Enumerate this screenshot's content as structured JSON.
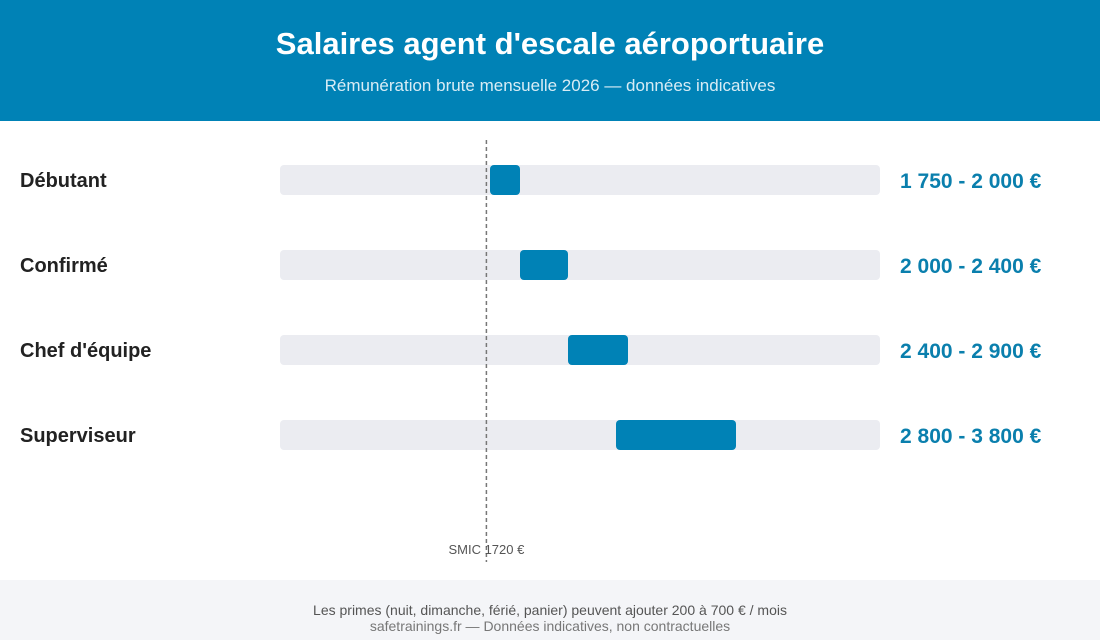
{
  "header": {
    "title": "Salaires agent d'escale aéroportuaire",
    "subtitle": "Rémunération brute mensuelle 2026 — données indicatives"
  },
  "chart_data": {
    "type": "bar",
    "orientation": "horizontal-range",
    "categories": [
      "Débutant",
      "Confirmé",
      "Chef d'équipe",
      "Superviseur"
    ],
    "ranges": [
      [
        1750,
        2000
      ],
      [
        2000,
        2400
      ],
      [
        2400,
        2900
      ],
      [
        2800,
        3800
      ]
    ],
    "value_labels": [
      "1 750 - 2 000 €",
      "2 000 - 2 400 €",
      "2 400 - 2 900 €",
      "2 800 - 3 800 €"
    ],
    "xlim": [
      0,
      5000
    ],
    "reference_line": {
      "value": 1720,
      "label": "SMIC 1720 €"
    },
    "grid": false,
    "colors": {
      "bar": "#0082b6",
      "track": "#ebecf1",
      "value_text": "#0a7fad",
      "reference": "#777777"
    }
  },
  "footer": {
    "note": "Les primes (nuit, dimanche, férié, panier) peuvent ajouter 200 à 700 € / mois",
    "source": "safetrainings.fr — Données indicatives, non contractuelles"
  },
  "colors": {
    "header_bg": "#0082b6",
    "footer_bg": "#f4f5f8"
  }
}
